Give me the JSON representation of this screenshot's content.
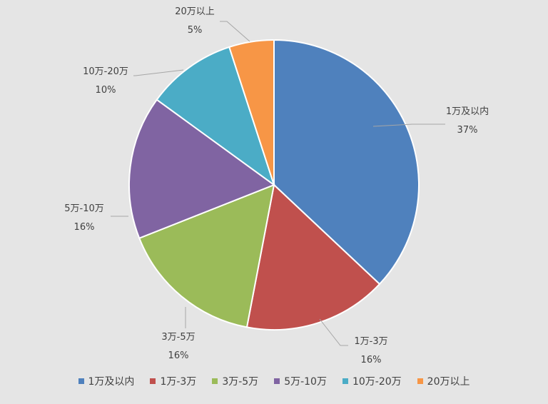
{
  "chart_data": {
    "type": "pie",
    "title": "",
    "categories": [
      "1万及以内",
      "1万-3万",
      "3万-5万",
      "5万-10万",
      "10万-20万",
      "20万以上"
    ],
    "values": [
      37,
      16,
      16,
      16,
      10,
      5
    ],
    "value_labels": [
      "37%",
      "16%",
      "16%",
      "16%",
      "10%",
      "5%"
    ],
    "colors": [
      "#4f81bd",
      "#c0504d",
      "#9bbb59",
      "#8064a2",
      "#4bacc6",
      "#f79646"
    ],
    "legend_position": "bottom",
    "start_angle": "12 o'clock, clockwise"
  }
}
